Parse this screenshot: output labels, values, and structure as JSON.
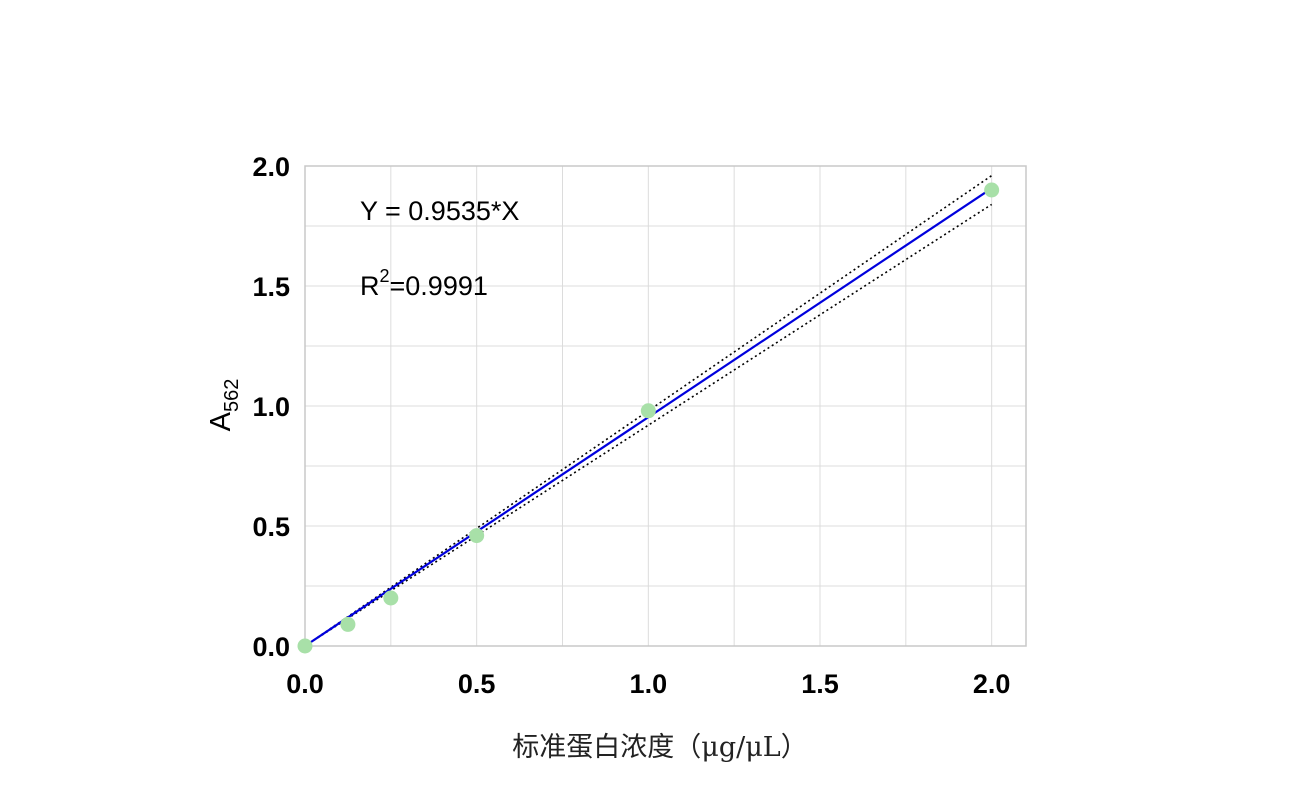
{
  "chart_data": {
    "type": "scatter",
    "title": "",
    "xlabel": "标准蛋白浓度（μg/μL）",
    "ylabel": "A",
    "ylabel_subscript": "562",
    "xlim": [
      0,
      2.1
    ],
    "ylim": [
      0,
      2.0
    ],
    "x_ticks": [
      "0.0",
      "0.5",
      "1.0",
      "1.5",
      "2.0"
    ],
    "y_ticks": [
      "0.0",
      "0.5",
      "1.0",
      "1.5",
      "2.0"
    ],
    "grid": true,
    "legend": "none",
    "series": [
      {
        "name": "",
        "x": [
          0,
          0.125,
          0.25,
          0.5,
          1.0,
          2.0
        ],
        "y": [
          0,
          0.09,
          0.2,
          0.46,
          0.98,
          1.9
        ],
        "color": "#a8e0a8"
      }
    ],
    "fit_line": {
      "slope": 0.9535,
      "x_range": [
        0,
        2.0
      ],
      "color": "#0000dd"
    },
    "confidence_band": {
      "style": "dotted",
      "color": "#000000",
      "upper_end": 1.96,
      "lower_end": 1.84
    },
    "annotations": {
      "equation": "Y = 0.9535*X",
      "r_squared_prefix": "R",
      "r_squared_sup": "2",
      "r_squared_value": "=0.9991"
    }
  }
}
